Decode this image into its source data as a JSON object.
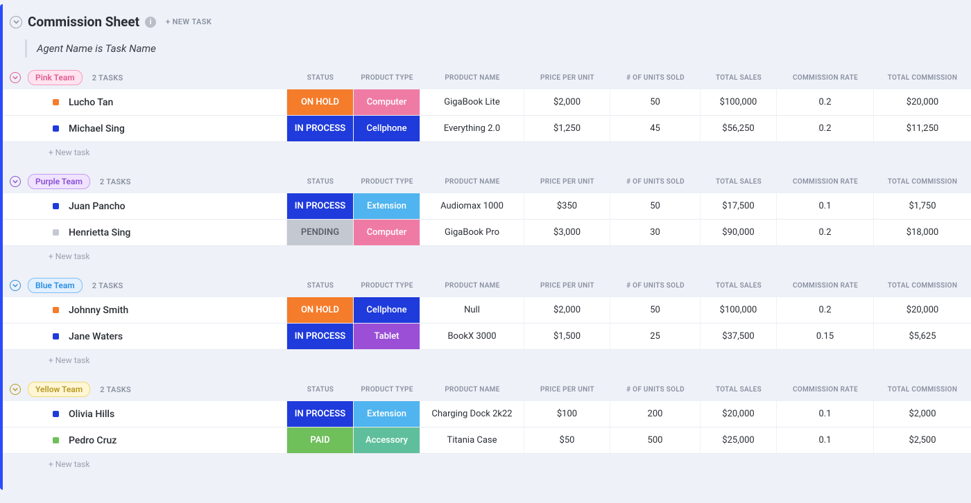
{
  "sheet": {
    "title": "Commission Sheet",
    "new_task_label": "+ NEW TASK",
    "subtitle": "Agent Name is Task Name"
  },
  "columns": {
    "status": "STATUS",
    "product_type": "PRODUCT TYPE",
    "product_name": "PRODUCT NAME",
    "price_per_unit": "PRICE PER UNIT",
    "units_sold": "# OF UNITS SOLD",
    "total_sales": "TOTAL SALES",
    "commission_rate": "COMMISSION RATE",
    "total_commission": "TOTAL COMMISSION"
  },
  "labels": {
    "new_task": "+ New task"
  },
  "status_colors": {
    "ON HOLD": "#f57c2a",
    "IN PROCESS": "#1f3bdb",
    "PENDING": "#c4c8d1",
    "PAID": "#6fbf5b"
  },
  "ptype_colors": {
    "Computer": "#ef7ba4",
    "Cellphone": "#1f3bdb",
    "Extension": "#4fb4ef",
    "Tablet": "#9b4fd6",
    "Accessory": "#5fbf9c"
  },
  "pending_text_color": "#5a5f6a",
  "marker_colors": {
    "orange": "#f57c2a",
    "blue": "#1f3bdb",
    "grey": "#c4c8d1",
    "green": "#6fbf5b"
  },
  "groups": [
    {
      "name": "Pink Team",
      "count_label": "2 TASKS",
      "pill_bg": "#ffe3ef",
      "pill_border": "#f29dc1",
      "pill_text": "#e05a92",
      "chev_color": "#e05a92",
      "rows": [
        {
          "marker": "orange",
          "agent": "Lucho Tan",
          "status": "ON HOLD",
          "ptype": "Computer",
          "pname": "GigaBook Lite",
          "price": "$2,000",
          "units": "50",
          "total": "$100,000",
          "rate": "0.2",
          "commission": "$20,000"
        },
        {
          "marker": "blue",
          "agent": "Michael Sing",
          "status": "IN PROCESS",
          "ptype": "Cellphone",
          "pname": "Everything 2.0",
          "price": "$1,250",
          "units": "45",
          "total": "$56,250",
          "rate": "0.2",
          "commission": "$11,250"
        }
      ]
    },
    {
      "name": "Purple Team",
      "count_label": "2 TASKS",
      "pill_bg": "#f0e3ff",
      "pill_border": "#c39df2",
      "pill_text": "#8a4fd6",
      "chev_color": "#8a4fd6",
      "rows": [
        {
          "marker": "blue",
          "agent": "Juan Pancho",
          "status": "IN PROCESS",
          "ptype": "Extension",
          "pname": "Audiomax 1000",
          "price": "$350",
          "units": "50",
          "total": "$17,500",
          "rate": "0.1",
          "commission": "$1,750"
        },
        {
          "marker": "grey",
          "agent": "Henrietta Sing",
          "status": "PENDING",
          "ptype": "Computer",
          "pname": "GigaBook Pro",
          "price": "$3,000",
          "units": "30",
          "total": "$90,000",
          "rate": "0.2",
          "commission": "$18,000"
        }
      ]
    },
    {
      "name": "Blue Team",
      "count_label": "2 TASKS",
      "pill_bg": "#e3f0ff",
      "pill_border": "#7fc0f2",
      "pill_text": "#2b8fe0",
      "chev_color": "#2b8fe0",
      "rows": [
        {
          "marker": "orange",
          "agent": "Johnny Smith",
          "status": "ON HOLD",
          "ptype": "Cellphone",
          "pname": "Null",
          "price": "$2,000",
          "units": "50",
          "total": "$100,000",
          "rate": "0.2",
          "commission": "$20,000"
        },
        {
          "marker": "blue",
          "agent": "Jane Waters",
          "status": "IN PROCESS",
          "ptype": "Tablet",
          "pname": "BookX 3000",
          "price": "$1,500",
          "units": "25",
          "total": "$37,500",
          "rate": "0.15",
          "commission": "$5,625"
        }
      ]
    },
    {
      "name": "Yellow Team",
      "count_label": "2 TASKS",
      "pill_bg": "#fff6d6",
      "pill_border": "#f2d96b",
      "pill_text": "#b89a1f",
      "chev_color": "#b89a1f",
      "rows": [
        {
          "marker": "blue",
          "agent": "Olivia Hills",
          "status": "IN PROCESS",
          "ptype": "Extension",
          "pname": "Charging Dock 2k22",
          "price": "$100",
          "units": "200",
          "total": "$20,000",
          "rate": "0.1",
          "commission": "$2,000"
        },
        {
          "marker": "green",
          "agent": "Pedro Cruz",
          "status": "PAID",
          "ptype": "Accessory",
          "pname": "Titania Case",
          "price": "$50",
          "units": "500",
          "total": "$25,000",
          "rate": "0.1",
          "commission": "$2,500"
        }
      ]
    }
  ]
}
